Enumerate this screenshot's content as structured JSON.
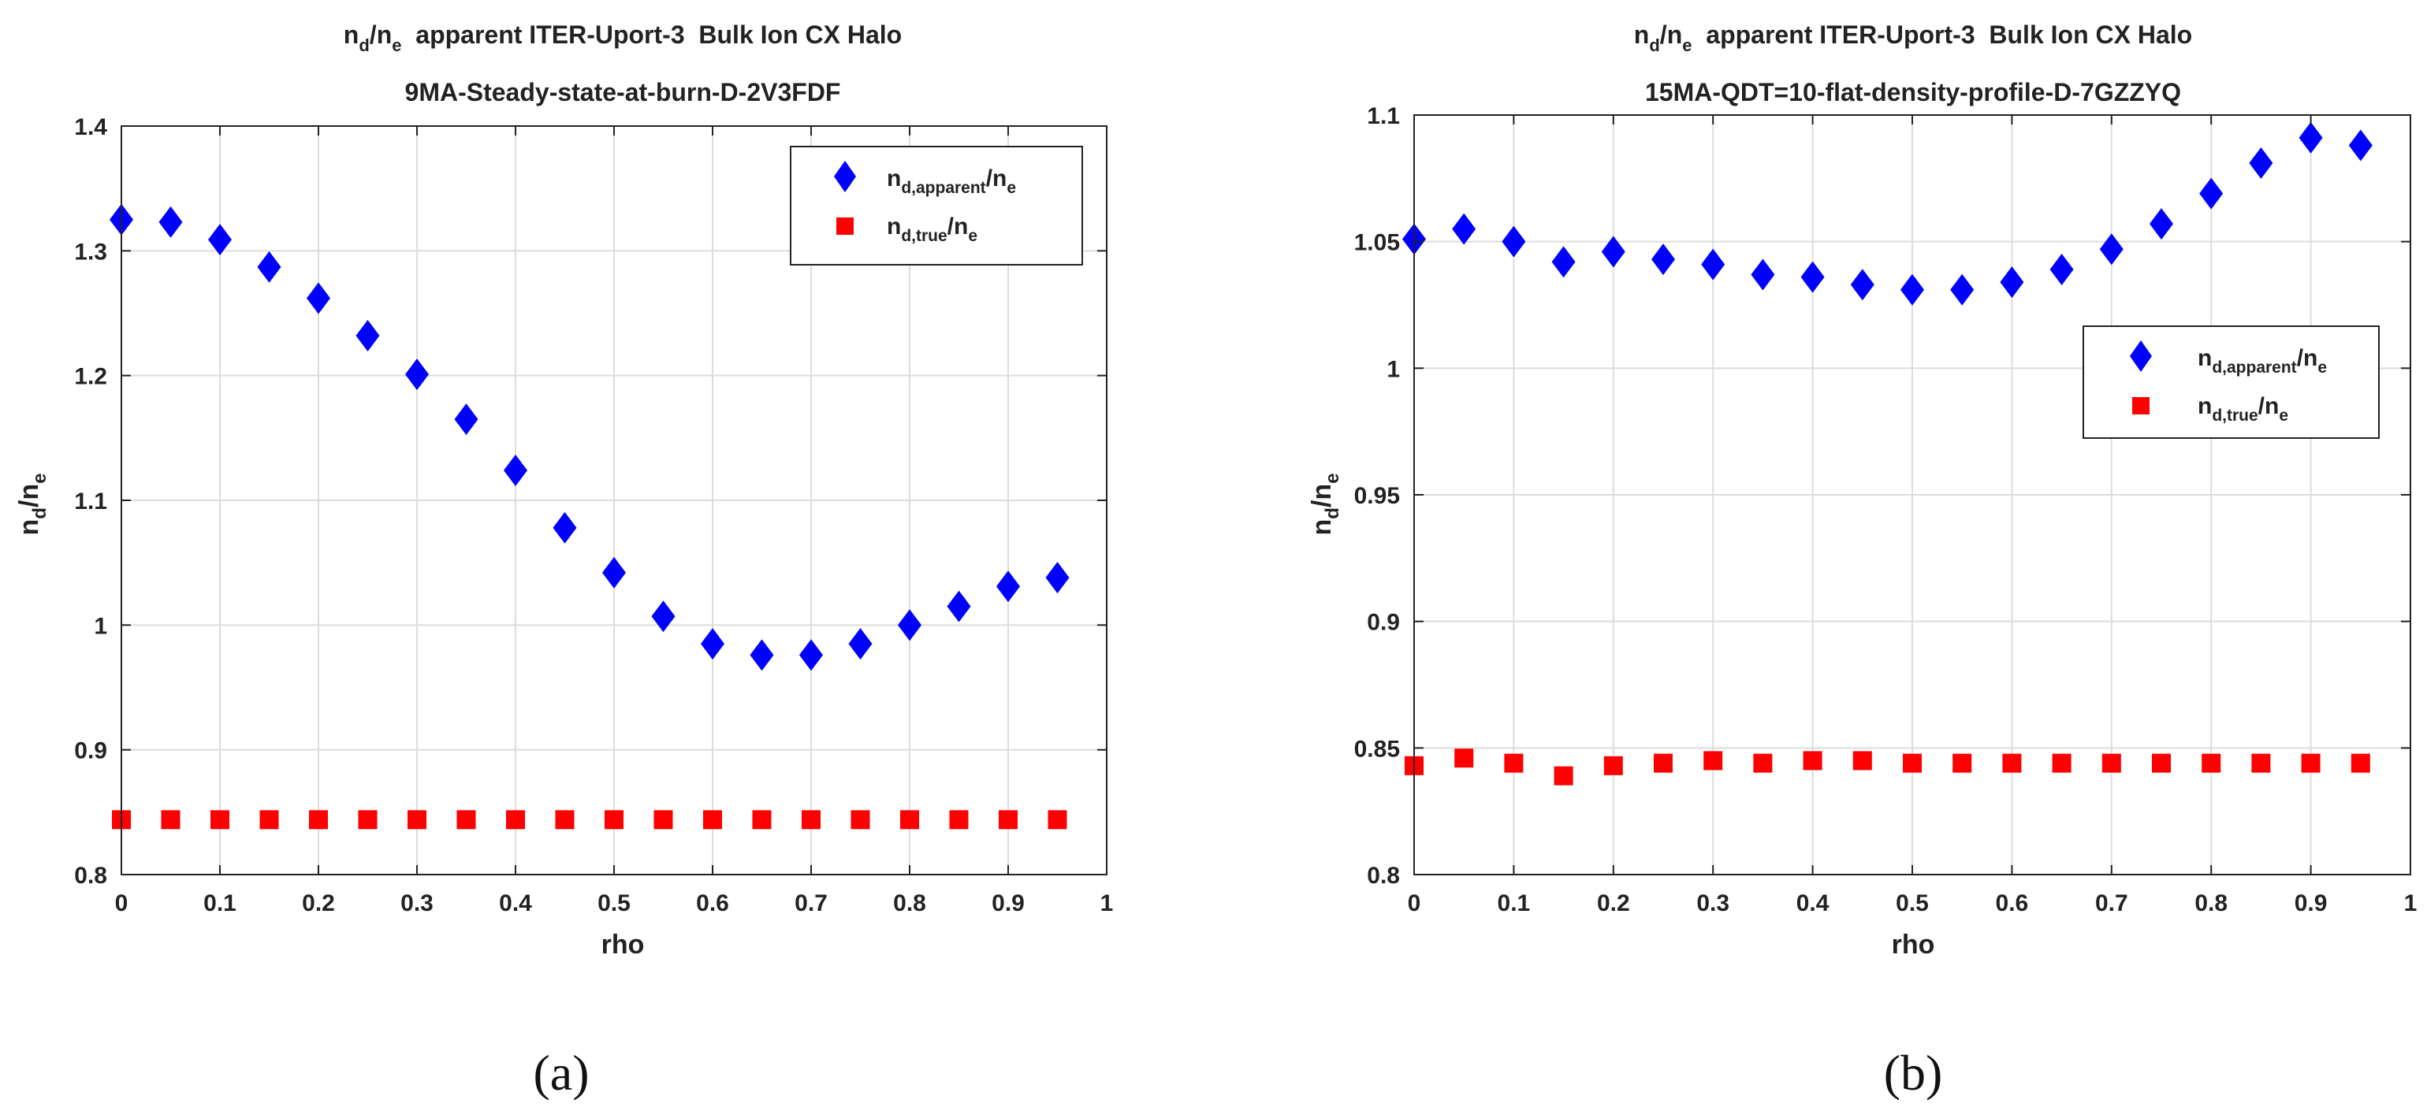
{
  "chart_data": [
    {
      "type": "scatter",
      "title_line1": {
        "n": "n",
        "d": "d",
        "slash": "/",
        "ne": "n",
        "e": "e",
        "rest": "  apparent ITER-Uport-3  Bulk Ion CX Halo"
      },
      "title_line2": "9MA-Steady-state-at-burn-D-2V3FDF",
      "xlabel": "rho",
      "ylabel": {
        "n": "n",
        "d": "d",
        "slash": "/",
        "ne": "n",
        "e": "e"
      },
      "xlim": [
        0,
        1
      ],
      "ylim": [
        0.8,
        1.4
      ],
      "xticks": [
        0,
        0.1,
        0.2,
        0.3,
        0.4,
        0.5,
        0.6,
        0.7,
        0.8,
        0.9,
        1
      ],
      "xtick_labels": [
        "0",
        "0.1",
        "0.2",
        "0.3",
        "0.4",
        "0.5",
        "0.6",
        "0.7",
        "0.8",
        "0.9",
        "1"
      ],
      "yticks": [
        0.8,
        0.9,
        1.0,
        1.1,
        1.2,
        1.3,
        1.4
      ],
      "ytick_labels": [
        "0.8",
        "0.9",
        "1",
        "1.1",
        "1.2",
        "1.3",
        "1.4"
      ],
      "grid": true,
      "legend_position": "top-right",
      "x": [
        0,
        0.05,
        0.1,
        0.15,
        0.2,
        0.25,
        0.3,
        0.35,
        0.4,
        0.45,
        0.5,
        0.55,
        0.6,
        0.65,
        0.7,
        0.75,
        0.8,
        0.85,
        0.9,
        0.95
      ],
      "series": [
        {
          "name": "nd,apparent/ne",
          "legend": {
            "n": "n",
            "sub": "d,apparent",
            "slash": "/",
            "n2": "n",
            "sub2": "e"
          },
          "marker": "diamond",
          "color": "#0000ff",
          "values": [
            1.325,
            1.323,
            1.309,
            1.287,
            1.262,
            1.232,
            1.201,
            1.165,
            1.124,
            1.078,
            1.042,
            1.007,
            0.985,
            0.976,
            0.976,
            0.985,
            1.0,
            1.015,
            1.031,
            1.038
          ]
        },
        {
          "name": "nd,true/ne",
          "legend": {
            "n": "n",
            "sub": "d,true",
            "slash": "/",
            "n2": "n",
            "sub2": "e"
          },
          "marker": "square",
          "color": "#ff0000",
          "values": [
            0.844,
            0.844,
            0.844,
            0.844,
            0.844,
            0.844,
            0.844,
            0.844,
            0.844,
            0.844,
            0.844,
            0.844,
            0.844,
            0.844,
            0.844,
            0.844,
            0.844,
            0.844,
            0.844,
            0.844
          ]
        }
      ],
      "caption": "(a)"
    },
    {
      "type": "scatter",
      "title_line1": {
        "n": "n",
        "d": "d",
        "slash": "/",
        "ne": "n",
        "e": "e",
        "rest": "  apparent ITER-Uport-3  Bulk Ion CX Halo"
      },
      "title_line2": "15MA-QDT=10-flat-density-profile-D-7GZZYQ",
      "xlabel": "rho",
      "ylabel": {
        "n": "n",
        "d": "d",
        "slash": "/",
        "ne": "n",
        "e": "e"
      },
      "xlim": [
        0,
        1
      ],
      "ylim": [
        0.8,
        1.1
      ],
      "xticks": [
        0,
        0.1,
        0.2,
        0.3,
        0.4,
        0.5,
        0.6,
        0.7,
        0.8,
        0.9,
        1
      ],
      "xtick_labels": [
        "0",
        "0.1",
        "0.2",
        "0.3",
        "0.4",
        "0.5",
        "0.6",
        "0.7",
        "0.8",
        "0.9",
        "1"
      ],
      "yticks": [
        0.8,
        0.85,
        0.9,
        0.95,
        1.0,
        1.05,
        1.1
      ],
      "ytick_labels": [
        "0.8",
        "0.85",
        "0.9",
        "0.95",
        "1",
        "1.05",
        "1.1"
      ],
      "grid": true,
      "legend_position": "center-right",
      "x": [
        0,
        0.05,
        0.1,
        0.15,
        0.2,
        0.25,
        0.3,
        0.35,
        0.4,
        0.45,
        0.5,
        0.55,
        0.6,
        0.65,
        0.7,
        0.75,
        0.8,
        0.85,
        0.9,
        0.95
      ],
      "series": [
        {
          "name": "nd,apparent/ne",
          "legend": {
            "n": "n",
            "sub": "d,apparent",
            "slash": "/",
            "n2": "n",
            "sub2": "e"
          },
          "marker": "diamond",
          "color": "#0000ff",
          "values": [
            1.051,
            1.055,
            1.05,
            1.042,
            1.046,
            1.043,
            1.041,
            1.037,
            1.036,
            1.033,
            1.031,
            1.031,
            1.034,
            1.039,
            1.047,
            1.057,
            1.069,
            1.081,
            1.091,
            1.088
          ]
        },
        {
          "name": "nd,true/ne",
          "legend": {
            "n": "n",
            "sub": "d,true",
            "slash": "/",
            "n2": "n",
            "sub2": "e"
          },
          "marker": "square",
          "color": "#ff0000",
          "values": [
            0.843,
            0.846,
            0.844,
            0.839,
            0.843,
            0.844,
            0.845,
            0.844,
            0.845,
            0.845,
            0.844,
            0.844,
            0.844,
            0.844,
            0.844,
            0.844,
            0.844,
            0.844,
            0.844,
            0.844
          ]
        }
      ],
      "caption": "(b)"
    }
  ]
}
